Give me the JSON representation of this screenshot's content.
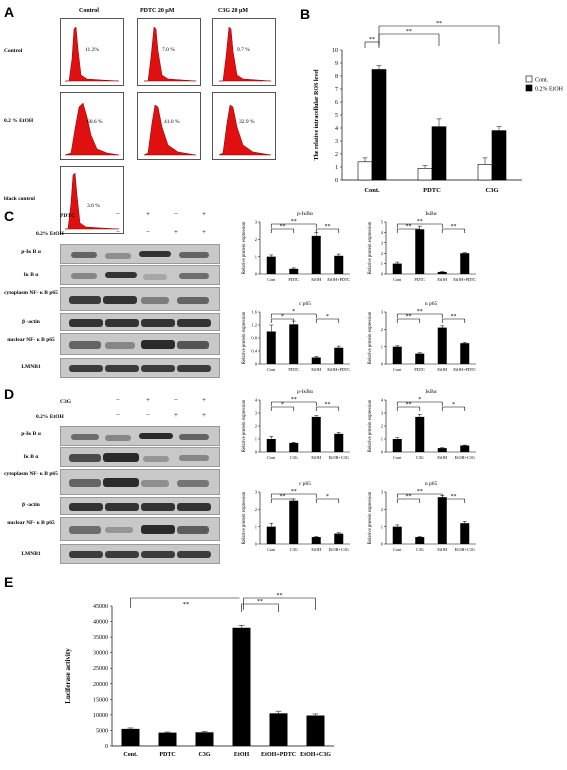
{
  "panels": {
    "A": "A",
    "B": "B",
    "C": "C",
    "D": "D",
    "E": "E"
  },
  "panel_a": {
    "col_headers": [
      "Control",
      "PDTC 20 μM",
      "C3G 20 μM"
    ],
    "row_headers": [
      "Control",
      "0.2 % EtOH",
      "black control"
    ],
    "percents": [
      [
        "11.2%",
        "7.0 %",
        "9.7 %"
      ],
      [
        "60.6 %",
        "41.0 %",
        "32.9 %"
      ],
      [
        "3.6 %"
      ]
    ]
  },
  "treatments_c": {
    "row1_label": "PDTC",
    "row2_label": "0.2% EtOH",
    "row1_signs": [
      "−",
      "+",
      "−",
      "+"
    ],
    "row2_signs": [
      "−",
      "−",
      "+",
      "+"
    ]
  },
  "treatments_d": {
    "row1_label": "C3G",
    "row2_label": "0.2% EtOH",
    "row1_signs": [
      "−",
      "+",
      "−",
      "+"
    ],
    "row2_signs": [
      "−",
      "−",
      "+",
      "+"
    ]
  },
  "blot_labels": [
    "p-Iκ B α",
    "Iκ B α",
    "cytoplasm NF- κ B p65",
    "β -actin",
    "nuclear NF- κ B p65",
    "LMNB1"
  ],
  "chart_data": [
    {
      "id": "B",
      "type": "bar",
      "title": "",
      "xlabel": "",
      "ylabel": "The relative intracellular ROS level",
      "categories": [
        "Cont.",
        "PDTC",
        "C3G"
      ],
      "ylim": [
        0,
        10
      ],
      "yticks": [
        0,
        1,
        2,
        3,
        4,
        5,
        6,
        7,
        8,
        9,
        10
      ],
      "series": [
        {
          "name": "Cont.",
          "color": "#ffffff",
          "values": [
            1.4,
            0.9,
            1.2
          ],
          "errors": [
            0.3,
            0.2,
            0.5
          ]
        },
        {
          "name": "0.2% EtOH",
          "color": "#000000",
          "values": [
            8.5,
            4.1,
            3.8
          ],
          "errors": [
            0.3,
            0.6,
            0.3
          ]
        }
      ],
      "annotations": [
        "**",
        "**",
        "**"
      ],
      "legend": "right"
    },
    {
      "id": "C1",
      "type": "bar",
      "title": "p-IκBα",
      "ylabel": "Relative protein expression",
      "categories": [
        "Cont",
        "PDTC",
        "EtOH",
        "EtOH+PDTC"
      ],
      "values": [
        1.0,
        0.3,
        2.2,
        1.05
      ],
      "errors": [
        0.1,
        0.05,
        0.2,
        0.1
      ],
      "ylim": [
        0,
        3
      ],
      "yticks": [
        0,
        1,
        2,
        3
      ],
      "annotations": [
        "**",
        "**",
        "**"
      ]
    },
    {
      "id": "C2",
      "type": "bar",
      "title": "IκBα",
      "ylabel": "Relative protein expression",
      "categories": [
        "Cont",
        "PDTC",
        "EtOH",
        "EtOH+PDTC"
      ],
      "values": [
        1.0,
        4.3,
        0.2,
        2.0
      ],
      "errors": [
        0.15,
        0.3,
        0.05,
        0.05
      ],
      "ylim": [
        0,
        5
      ],
      "yticks": [
        0,
        1,
        2,
        3,
        4,
        5
      ],
      "annotations": [
        "**",
        "**",
        "**"
      ]
    },
    {
      "id": "C3",
      "type": "bar",
      "title": "c p65",
      "ylabel": "Relative protein expression",
      "categories": [
        "Cont",
        "PDTC",
        "EtOH",
        "EtOH+PDTC"
      ],
      "values": [
        1.0,
        1.22,
        0.2,
        0.5
      ],
      "errors": [
        0.2,
        0.1,
        0.03,
        0.05
      ],
      "ylim": [
        0,
        1.6
      ],
      "yticks": [
        0,
        0.4,
        0.8,
        1.2,
        1.6
      ],
      "annotations": [
        "*",
        "*",
        "*"
      ]
    },
    {
      "id": "C4",
      "type": "bar",
      "title": "n p65",
      "ylabel": "Relative protein expression",
      "categories": [
        "Cont",
        "PDTC",
        "EtOH",
        "EtOH+PDTC"
      ],
      "values": [
        1.0,
        0.6,
        2.1,
        1.2
      ],
      "errors": [
        0.05,
        0.05,
        0.1,
        0.05
      ],
      "ylim": [
        0,
        3
      ],
      "yticks": [
        0,
        1,
        2,
        3
      ],
      "annotations": [
        "**",
        "**",
        "**"
      ]
    },
    {
      "id": "D1",
      "type": "bar",
      "title": "p-IκBα",
      "ylabel": "Relative protein expression",
      "categories": [
        "Cont",
        "C3G",
        "EtOH",
        "EtOH+C3G"
      ],
      "values": [
        1.0,
        0.7,
        2.7,
        1.4
      ],
      "errors": [
        0.2,
        0.05,
        0.1,
        0.1
      ],
      "ylim": [
        0,
        4
      ],
      "yticks": [
        0,
        1,
        2,
        3,
        4
      ],
      "annotations": [
        "*",
        "**",
        "**"
      ]
    },
    {
      "id": "D2",
      "type": "bar",
      "title": "IκBα",
      "ylabel": "Relative protein expression",
      "categories": [
        "Cont",
        "C3G",
        "EtOH",
        "EtOH+C3G"
      ],
      "values": [
        1.0,
        2.7,
        0.3,
        0.5
      ],
      "errors": [
        0.1,
        0.2,
        0.03,
        0.03
      ],
      "ylim": [
        0,
        4
      ],
      "yticks": [
        0,
        1,
        2,
        3,
        4
      ],
      "annotations": [
        "**",
        "*",
        "*"
      ]
    },
    {
      "id": "D3",
      "type": "bar",
      "title": "c p65",
      "ylabel": "Relative protein expression",
      "categories": [
        "Cont",
        "C3G",
        "EtOH",
        "EtOH+C3G"
      ],
      "values": [
        1.0,
        2.5,
        0.4,
        0.6
      ],
      "errors": [
        0.2,
        0.1,
        0.03,
        0.05
      ],
      "ylim": [
        0,
        3
      ],
      "yticks": [
        0,
        1,
        2,
        3
      ],
      "annotations": [
        "**",
        "**",
        "*"
      ]
    },
    {
      "id": "D4",
      "type": "bar",
      "title": "n p65",
      "ylabel": "Relative protein expression",
      "categories": [
        "Cont",
        "C3G",
        "EtOH",
        "EtOH+C3G"
      ],
      "values": [
        1.0,
        0.4,
        2.7,
        1.2
      ],
      "errors": [
        0.1,
        0.03,
        0.1,
        0.1
      ],
      "ylim": [
        0,
        3
      ],
      "yticks": [
        0,
        1,
        2,
        3
      ],
      "annotations": [
        "**",
        "**",
        "**"
      ]
    },
    {
      "id": "E",
      "type": "bar",
      "title": "",
      "xlabel": "",
      "ylabel": "Luciferase activity",
      "categories": [
        "Cont.",
        "PDTC",
        "C3G",
        "EtOH",
        "EtOH+PDTC",
        "EtOH+C3G"
      ],
      "values": [
        5500,
        4300,
        4400,
        38000,
        10500,
        9800
      ],
      "errors": [
        300,
        200,
        300,
        800,
        700,
        500
      ],
      "ylim": [
        0,
        45000
      ],
      "yticks": [
        0,
        5000,
        10000,
        15000,
        20000,
        25000,
        30000,
        35000,
        40000,
        45000
      ],
      "annotations": [
        "**",
        "**",
        "**"
      ]
    }
  ]
}
